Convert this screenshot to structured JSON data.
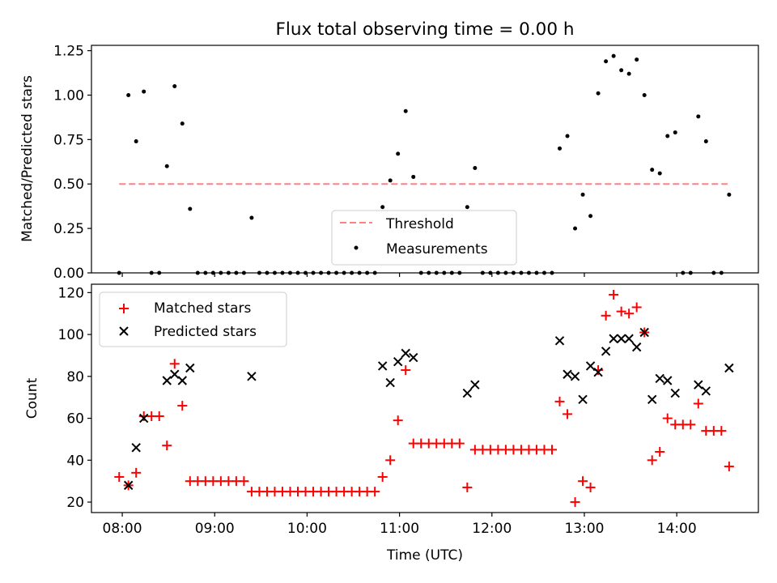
{
  "chart_data": [
    {
      "type": "scatter",
      "title": "Flux total observing time = 0.00 h",
      "xlabel": "",
      "ylabel": "Matched/Predicted stars",
      "xlim": [
        "07:40",
        "14:53"
      ],
      "ylim": [
        0,
        1.28
      ],
      "yticks": [
        0,
        0.25,
        0.5,
        0.75,
        1.0,
        1.25
      ],
      "ytick_labels": [
        "0.00",
        "0.25",
        "0.50",
        "0.75",
        "1.00",
        "1.25"
      ],
      "xticks": [
        "08:00",
        "09:00",
        "10:00",
        "11:00",
        "12:00",
        "13:00",
        "14:00"
      ],
      "legend": {
        "placement": "lower center",
        "entries": [
          "Threshold",
          "Measurements"
        ]
      },
      "threshold": {
        "name": "Threshold",
        "value": 0.5,
        "x_start": "07:58",
        "x_end": "14:33",
        "color": "#ff8080"
      },
      "series": [
        {
          "name": "Measurements",
          "color": "#000000",
          "points": [
            [
              "07:58",
              0
            ],
            [
              "08:04",
              1.0
            ],
            [
              "08:09",
              0.74
            ],
            [
              "08:14",
              1.02
            ],
            [
              "08:19",
              0
            ],
            [
              "08:24",
              0
            ],
            [
              "08:29",
              0.6
            ],
            [
              "08:34",
              1.05
            ],
            [
              "08:39",
              0.84
            ],
            [
              "08:44",
              0.36
            ],
            [
              "08:49",
              0
            ],
            [
              "08:54",
              0
            ],
            [
              "08:59",
              0
            ],
            [
              "09:04",
              0
            ],
            [
              "09:09",
              0
            ],
            [
              "09:14",
              0
            ],
            [
              "09:19",
              0
            ],
            [
              "09:24",
              0.31
            ],
            [
              "09:29",
              0
            ],
            [
              "09:34",
              0
            ],
            [
              "09:39",
              0
            ],
            [
              "09:44",
              0
            ],
            [
              "09:49",
              0
            ],
            [
              "09:54",
              0
            ],
            [
              "09:59",
              0
            ],
            [
              "10:04",
              0
            ],
            [
              "10:09",
              0
            ],
            [
              "10:14",
              0
            ],
            [
              "10:19",
              0
            ],
            [
              "10:24",
              0
            ],
            [
              "10:29",
              0
            ],
            [
              "10:34",
              0
            ],
            [
              "10:39",
              0
            ],
            [
              "10:44",
              0
            ],
            [
              "10:49",
              0.37
            ],
            [
              "10:54",
              0.52
            ],
            [
              "10:59",
              0.67
            ],
            [
              "11:04",
              0.91
            ],
            [
              "11:09",
              0.54
            ],
            [
              "11:14",
              0
            ],
            [
              "11:19",
              0
            ],
            [
              "11:24",
              0
            ],
            [
              "11:29",
              0
            ],
            [
              "11:34",
              0
            ],
            [
              "11:39",
              0
            ],
            [
              "11:44",
              0.37
            ],
            [
              "11:49",
              0.59
            ],
            [
              "11:54",
              0
            ],
            [
              "11:59",
              0
            ],
            [
              "12:04",
              0
            ],
            [
              "12:09",
              0
            ],
            [
              "12:14",
              0
            ],
            [
              "12:19",
              0
            ],
            [
              "12:24",
              0
            ],
            [
              "12:29",
              0
            ],
            [
              "12:34",
              0
            ],
            [
              "12:39",
              0
            ],
            [
              "12:44",
              0.7
            ],
            [
              "12:49",
              0.77
            ],
            [
              "12:54",
              0.25
            ],
            [
              "12:59",
              0.44
            ],
            [
              "13:04",
              0.32
            ],
            [
              "13:09",
              1.01
            ],
            [
              "13:14",
              1.19
            ],
            [
              "13:19",
              1.22
            ],
            [
              "13:24",
              1.14
            ],
            [
              "13:29",
              1.12
            ],
            [
              "13:34",
              1.2
            ],
            [
              "13:39",
              1.0
            ],
            [
              "13:44",
              0.58
            ],
            [
              "13:49",
              0.56
            ],
            [
              "13:54",
              0.77
            ],
            [
              "13:59",
              0.79
            ],
            [
              "14:04",
              0
            ],
            [
              "14:09",
              0
            ],
            [
              "14:14",
              0.88
            ],
            [
              "14:19",
              0.74
            ],
            [
              "14:24",
              0
            ],
            [
              "14:29",
              0
            ],
            [
              "14:34",
              0.44
            ]
          ]
        }
      ]
    },
    {
      "type": "scatter",
      "title": "",
      "xlabel": "Time (UTC)",
      "ylabel": "Count",
      "xlim": [
        "07:40",
        "14:53"
      ],
      "ylim": [
        15,
        124
      ],
      "yticks": [
        20,
        40,
        60,
        80,
        100,
        120
      ],
      "ytick_labels": [
        "20",
        "40",
        "60",
        "80",
        "100",
        "120"
      ],
      "xticks": [
        "08:00",
        "09:00",
        "10:00",
        "11:00",
        "12:00",
        "13:00",
        "14:00"
      ],
      "legend": {
        "placement": "upper left",
        "entries": [
          "Matched stars",
          "Predicted stars"
        ]
      },
      "series": [
        {
          "name": "Matched stars",
          "marker": "plus",
          "color": "#ff0000",
          "points": [
            [
              "07:58",
              32
            ],
            [
              "08:04",
              28
            ],
            [
              "08:09",
              34
            ],
            [
              "08:14",
              61
            ],
            [
              "08:19",
              61
            ],
            [
              "08:24",
              61
            ],
            [
              "08:29",
              47
            ],
            [
              "08:34",
              86
            ],
            [
              "08:39",
              66
            ],
            [
              "08:44",
              30
            ],
            [
              "08:49",
              30
            ],
            [
              "08:54",
              30
            ],
            [
              "08:59",
              30
            ],
            [
              "09:04",
              30
            ],
            [
              "09:09",
              30
            ],
            [
              "09:14",
              30
            ],
            [
              "09:19",
              30
            ],
            [
              "09:24",
              25
            ],
            [
              "09:29",
              25
            ],
            [
              "09:34",
              25
            ],
            [
              "09:39",
              25
            ],
            [
              "09:44",
              25
            ],
            [
              "09:49",
              25
            ],
            [
              "09:54",
              25
            ],
            [
              "09:59",
              25
            ],
            [
              "10:04",
              25
            ],
            [
              "10:09",
              25
            ],
            [
              "10:14",
              25
            ],
            [
              "10:19",
              25
            ],
            [
              "10:24",
              25
            ],
            [
              "10:29",
              25
            ],
            [
              "10:34",
              25
            ],
            [
              "10:39",
              25
            ],
            [
              "10:44",
              25
            ],
            [
              "10:49",
              32
            ],
            [
              "10:54",
              40
            ],
            [
              "10:59",
              59
            ],
            [
              "11:04",
              83
            ],
            [
              "11:09",
              48
            ],
            [
              "11:14",
              48
            ],
            [
              "11:19",
              48
            ],
            [
              "11:24",
              48
            ],
            [
              "11:29",
              48
            ],
            [
              "11:34",
              48
            ],
            [
              "11:39",
              48
            ],
            [
              "11:44",
              27
            ],
            [
              "11:49",
              45
            ],
            [
              "11:54",
              45
            ],
            [
              "11:59",
              45
            ],
            [
              "12:04",
              45
            ],
            [
              "12:09",
              45
            ],
            [
              "12:14",
              45
            ],
            [
              "12:19",
              45
            ],
            [
              "12:24",
              45
            ],
            [
              "12:29",
              45
            ],
            [
              "12:34",
              45
            ],
            [
              "12:39",
              45
            ],
            [
              "12:44",
              68
            ],
            [
              "12:49",
              62
            ],
            [
              "12:54",
              20
            ],
            [
              "12:59",
              30
            ],
            [
              "13:04",
              27
            ],
            [
              "13:09",
              83
            ],
            [
              "13:14",
              109
            ],
            [
              "13:19",
              119
            ],
            [
              "13:24",
              111
            ],
            [
              "13:29",
              110
            ],
            [
              "13:34",
              113
            ],
            [
              "13:39",
              101
            ],
            [
              "13:44",
              40
            ],
            [
              "13:49",
              44
            ],
            [
              "13:54",
              60
            ],
            [
              "13:59",
              57
            ],
            [
              "14:04",
              57
            ],
            [
              "14:09",
              57
            ],
            [
              "14:14",
              67
            ],
            [
              "14:19",
              54
            ],
            [
              "14:24",
              54
            ],
            [
              "14:29",
              54
            ],
            [
              "14:34",
              37
            ]
          ]
        },
        {
          "name": "Predicted stars",
          "marker": "x",
          "color": "#000000",
          "points": [
            [
              "08:04",
              28
            ],
            [
              "08:09",
              46
            ],
            [
              "08:14",
              60
            ],
            [
              "08:29",
              78
            ],
            [
              "08:34",
              81
            ],
            [
              "08:39",
              78
            ],
            [
              "08:44",
              84
            ],
            [
              "09:24",
              80
            ],
            [
              "10:49",
              85
            ],
            [
              "10:54",
              77
            ],
            [
              "10:59",
              87
            ],
            [
              "11:04",
              91
            ],
            [
              "11:09",
              89
            ],
            [
              "11:44",
              72
            ],
            [
              "11:49",
              76
            ],
            [
              "12:44",
              97
            ],
            [
              "12:49",
              81
            ],
            [
              "12:54",
              80
            ],
            [
              "12:59",
              69
            ],
            [
              "13:04",
              85
            ],
            [
              "13:09",
              82
            ],
            [
              "13:14",
              92
            ],
            [
              "13:19",
              98
            ],
            [
              "13:24",
              98
            ],
            [
              "13:29",
              98
            ],
            [
              "13:34",
              94
            ],
            [
              "13:39",
              101
            ],
            [
              "13:44",
              69
            ],
            [
              "13:49",
              79
            ],
            [
              "13:54",
              78
            ],
            [
              "13:59",
              72
            ],
            [
              "14:14",
              76
            ],
            [
              "14:19",
              73
            ],
            [
              "14:34",
              84
            ]
          ]
        }
      ]
    }
  ]
}
